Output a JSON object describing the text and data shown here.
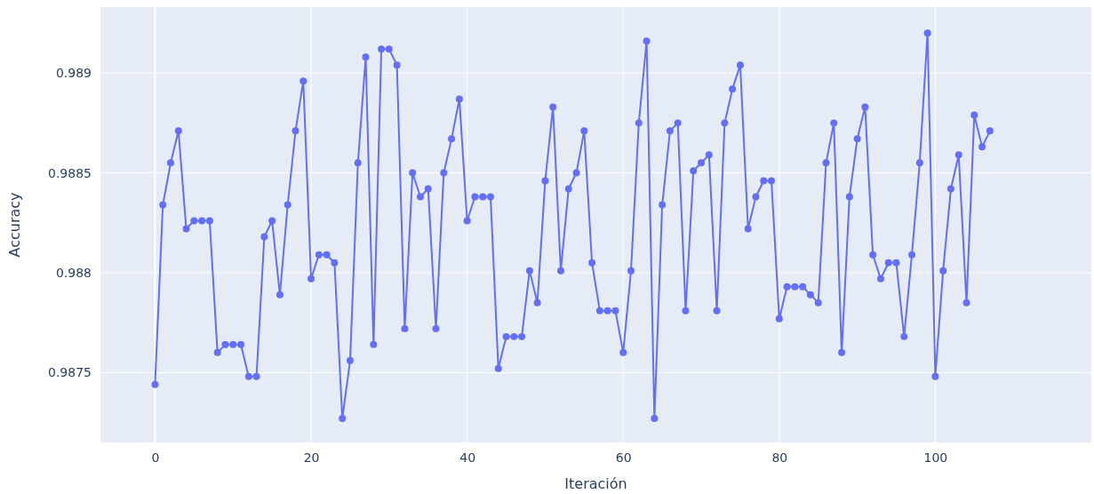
{
  "chart_data": {
    "type": "line",
    "xlabel": "Iteración",
    "ylabel": "Accuracy",
    "marker": "circle",
    "grid": true,
    "xlim": [
      -7,
      120
    ],
    "ylim": [
      0.98715,
      0.98933
    ],
    "xticks": [
      0,
      20,
      40,
      60,
      80,
      100
    ],
    "yticks": [
      0.9875,
      0.988,
      0.9885,
      0.989
    ],
    "x": [
      0,
      1,
      2,
      3,
      4,
      5,
      6,
      7,
      8,
      9,
      10,
      11,
      12,
      13,
      14,
      15,
      16,
      17,
      18,
      19,
      20,
      21,
      22,
      23,
      24,
      25,
      26,
      27,
      28,
      29,
      30,
      31,
      32,
      33,
      34,
      35,
      36,
      37,
      38,
      39,
      40,
      41,
      42,
      43,
      44,
      45,
      46,
      47,
      48,
      49,
      50,
      51,
      52,
      53,
      54,
      55,
      56,
      57,
      58,
      59,
      60,
      61,
      62,
      63,
      64,
      65,
      66,
      67,
      68,
      69,
      70,
      71,
      72,
      73,
      74,
      75,
      76,
      77,
      78,
      79,
      80,
      81,
      82,
      83,
      84,
      85,
      86,
      87,
      88,
      89,
      90,
      91,
      92,
      93,
      94,
      95,
      96,
      97,
      98,
      99,
      100,
      101,
      102,
      103,
      104,
      105,
      106,
      107
    ],
    "series": [
      {
        "color": "#636efa",
        "values": [
          0.98744,
          0.98834,
          0.98855,
          0.98871,
          0.98822,
          0.98826,
          0.98826,
          0.98826,
          0.9876,
          0.98764,
          0.98764,
          0.98764,
          0.98748,
          0.98748,
          0.98818,
          0.98826,
          0.98789,
          0.98834,
          0.98871,
          0.98896,
          0.98797,
          0.98809,
          0.98809,
          0.98805,
          0.98727,
          0.98756,
          0.98855,
          0.98908,
          0.98764,
          0.98912,
          0.98912,
          0.98904,
          0.98772,
          0.9885,
          0.98838,
          0.98842,
          0.98772,
          0.9885,
          0.98867,
          0.98887,
          0.98826,
          0.98838,
          0.98838,
          0.98838,
          0.98752,
          0.98768,
          0.98768,
          0.98768,
          0.98801,
          0.98785,
          0.98846,
          0.98883,
          0.98801,
          0.98842,
          0.9885,
          0.98871,
          0.98805,
          0.98781,
          0.98781,
          0.98781,
          0.9876,
          0.98801,
          0.98875,
          0.98916,
          0.98727,
          0.98834,
          0.98871,
          0.98875,
          0.98781,
          0.98851,
          0.98855,
          0.98859,
          0.98781,
          0.98875,
          0.98892,
          0.98904,
          0.98822,
          0.98838,
          0.98846,
          0.98846,
          0.98777,
          0.98793,
          0.98793,
          0.98793,
          0.98789,
          0.98785,
          0.98855,
          0.98875,
          0.9876,
          0.98838,
          0.98867,
          0.98883,
          0.98809,
          0.98797,
          0.98805,
          0.98805,
          0.98768,
          0.98809,
          0.98855,
          0.9892,
          0.98748,
          0.98801,
          0.98842,
          0.98859,
          0.98785,
          0.98879,
          0.98863,
          0.98871
        ]
      }
    ]
  }
}
